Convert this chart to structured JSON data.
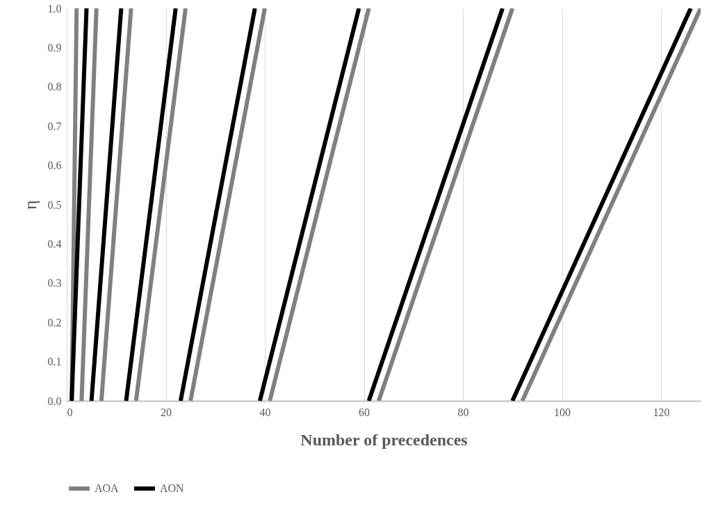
{
  "chart_data": {
    "type": "line",
    "xlabel": "Number of precedences",
    "ylabel": "η",
    "xlim": [
      0,
      128
    ],
    "xticks": [
      0,
      20,
      40,
      60,
      80,
      100,
      120
    ],
    "ylim": [
      0,
      1
    ],
    "yticks": [
      {
        "value": 0,
        "label": "0.0"
      },
      {
        "value": 0.1,
        "label": "0.1"
      },
      {
        "value": 0.2,
        "label": "0.2"
      },
      {
        "value": 0.3,
        "label": "0.3"
      },
      {
        "value": 0.4,
        "label": "0.4"
      },
      {
        "value": 0.5,
        "label": "0.5"
      },
      {
        "value": 0.6,
        "label": "0.6"
      },
      {
        "value": 0.7,
        "label": "0.7"
      },
      {
        "value": 0.8,
        "label": "0.8"
      },
      {
        "value": 0.9,
        "label": "0.9"
      },
      {
        "value": 1,
        "label": "1.0"
      }
    ],
    "grid": "x",
    "legend": "bottom",
    "marker": "none",
    "line_style": "solid",
    "series": [
      {
        "name": "AOA",
        "color": "#808080",
        "x": [
          1,
          2,
          null,
          3,
          6,
          null,
          7,
          13,
          null,
          14,
          24,
          null,
          25,
          40,
          null,
          41,
          61,
          null,
          63,
          90,
          null,
          92,
          128
        ],
        "values": [
          0,
          1,
          null,
          0,
          1,
          null,
          0,
          1,
          null,
          0,
          1,
          null,
          0,
          1,
          null,
          0,
          1,
          null,
          0,
          1,
          null,
          0,
          1
        ]
      },
      {
        "name": "AON",
        "color": "#000000",
        "x": [
          1,
          4,
          null,
          5,
          11,
          null,
          12,
          22,
          null,
          23,
          38,
          null,
          39,
          59,
          null,
          61,
          88,
          null,
          90,
          126
        ],
        "values": [
          0,
          1,
          null,
          0,
          1,
          null,
          0,
          1,
          null,
          0,
          1,
          null,
          0,
          1,
          null,
          0,
          1,
          null,
          0,
          1
        ]
      }
    ]
  }
}
